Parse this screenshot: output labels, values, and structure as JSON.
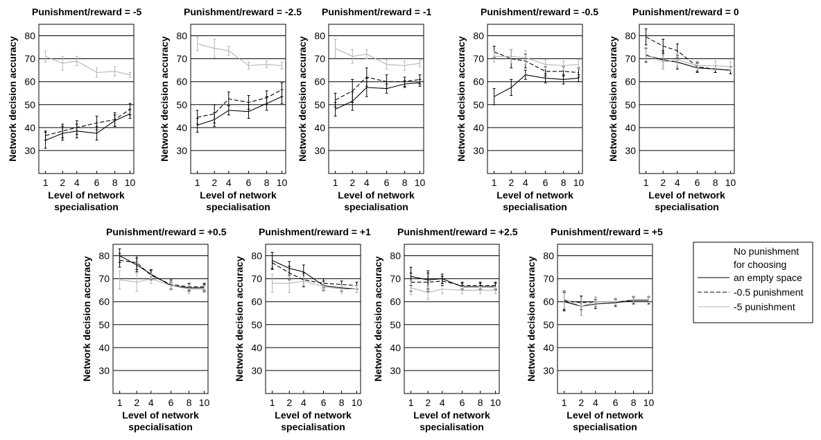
{
  "chart_data": {
    "type": "line",
    "x": [
      1,
      2,
      4,
      6,
      8,
      10
    ],
    "xlabel": "Level of network specialisation",
    "ylabel": "Network decision accuracy",
    "ylim": [
      20,
      85
    ],
    "yticks": [
      30,
      40,
      50,
      60,
      70,
      80
    ],
    "grid": "horizontal",
    "legend": {
      "position": "right",
      "entries": [
        {
          "lines": [
            "No punishment",
            "for choosing",
            "an empty space"
          ],
          "style": "solid",
          "color": "#000000"
        },
        {
          "lines": [
            "-0.5 punishment"
          ],
          "style": "dashed",
          "color": "#000000"
        },
        {
          "lines": [
            "-5 punishment"
          ],
          "style": "solid",
          "color": "#b4b4b4"
        }
      ]
    },
    "panels": [
      {
        "title": "Punishment/reward = -5",
        "series": [
          {
            "values": [
              34.5,
              37.5,
              38.5,
              37.5,
              43,
              46
            ],
            "err": [
              3.5,
              3,
              3,
              3,
              2.5,
              2
            ]
          },
          {
            "values": [
              36.5,
              38.5,
              40,
              42,
              43.5,
              48
            ],
            "err": [
              2,
              3,
              3,
              3,
              3,
              2.5
            ]
          },
          {
            "values": [
              71,
              68,
              69,
              64,
              64.5,
              63
            ],
            "err": [
              2.5,
              3,
              2,
              2,
              2,
              1
            ]
          }
        ]
      },
      {
        "title": "Punishment/reward = -2.5",
        "series": [
          {
            "values": [
              41,
              43.5,
              47.5,
              47,
              50.5,
              53.5
            ],
            "err": [
              3,
              3,
              2,
              3,
              3,
              3
            ]
          },
          {
            "values": [
              44.5,
              46,
              52.5,
              51,
              53,
              56.5
            ],
            "err": [
              3,
              4,
              3,
              3,
              3,
              3
            ]
          },
          {
            "values": [
              76.5,
              74.5,
              73.5,
              67,
              67.5,
              67
            ],
            "err": [
              3,
              4,
              2,
              1.5,
              1.5,
              1.5
            ]
          }
        ]
      },
      {
        "title": "Punishment/reward = -1",
        "series": [
          {
            "values": [
              48,
              51.5,
              57.5,
              57,
              59,
              59.5
            ],
            "err": [
              3,
              4,
              4,
              2,
              1.5,
              1.5
            ]
          },
          {
            "values": [
              52,
              56,
              62,
              60,
              60,
              61
            ],
            "err": [
              3,
              5,
              4,
              3,
              2,
              2
            ]
          },
          {
            "values": [
              74.5,
              71,
              72,
              67.5,
              67,
              68
            ],
            "err": [
              4,
              3,
              2,
              2,
              2,
              1.5
            ]
          }
        ]
      },
      {
        "title": "Punishment/reward = -0.5",
        "series": [
          {
            "values": [
              53.5,
              57.5,
              63,
              61.5,
              61,
              61.5
            ],
            "err": [
              3.5,
              3.5,
              2,
              2,
              2,
              1.5
            ]
          },
          {
            "values": [
              73,
              70,
              69,
              64.5,
              64.5,
              64
            ],
            "err": [
              2.5,
              4,
              3,
              2,
              2,
              2
            ]
          },
          {
            "values": [
              71,
              71,
              70.5,
              67.5,
              67,
              67.5
            ],
            "err": [
              2.5,
              3,
              3,
              2,
              2,
              2
            ]
          }
        ]
      },
      {
        "title": "Punishment/reward = 0",
        "series": [
          {
            "values": [
              71.5,
              69.5,
              68.5,
              66,
              65.5,
              65
            ],
            "err": [
              3,
              4,
              3,
              2,
              1.5,
              1.5
            ]
          },
          {
            "values": [
              79.5,
              75.5,
              73.5,
              66.5,
              65.5,
              65
            ],
            "err": [
              3.5,
              3,
              3,
              2,
              1.5,
              1.5
            ]
          },
          {
            "values": [
              72,
              68.5,
              69.5,
              67,
              67,
              66.5
            ],
            "err": [
              3,
              3,
              3,
              2,
              2,
              2
            ]
          }
        ]
      },
      {
        "title": "Punishment/reward = +0.5",
        "series": [
          {
            "values": [
              80,
              76,
              72,
              67,
              66,
              66
            ],
            "err": [
              3,
              3,
              2,
              1.5,
              1.5,
              1.5
            ]
          },
          {
            "values": [
              78,
              77,
              71.5,
              67.5,
              66.5,
              66.5
            ],
            "err": [
              3,
              3,
              2,
              2,
              1.5,
              1.5
            ]
          },
          {
            "values": [
              69.5,
              68.5,
              70,
              67,
              65.5,
              65.5
            ],
            "err": [
              4,
              4,
              2,
              2,
              2,
              1.5
            ]
          }
        ]
      },
      {
        "title": "Punishment/reward = +1",
        "series": [
          {
            "values": [
              78,
              74.5,
              73,
              67,
              66,
              65.5
            ],
            "err": [
              3.5,
              3,
              3,
              2,
              1.5,
              1.5
            ]
          },
          {
            "values": [
              77,
              72.5,
              69.5,
              68,
              67.5,
              67
            ],
            "err": [
              3,
              3,
              3,
              2,
              1.5,
              1.5
            ]
          },
          {
            "values": [
              68,
              68,
              69,
              66.5,
              65.5,
              65.5
            ],
            "err": [
              4,
              4,
              2,
              2,
              2,
              1.5
            ]
          }
        ]
      },
      {
        "title": "Punishment/reward = +2.5",
        "series": [
          {
            "values": [
              71,
              69.5,
              70,
              66.5,
              66.5,
              66.5
            ],
            "err": [
              4,
              4,
              2,
              1.5,
              1.5,
              1.5
            ]
          },
          {
            "values": [
              68.5,
              68.5,
              69,
              67,
              67,
              67
            ],
            "err": [
              4,
              4,
              2,
              1.5,
              1.5,
              1.5
            ]
          },
          {
            "values": [
              66,
              64,
              65.5,
              65,
              65,
              65
            ],
            "err": [
              3,
              3,
              2,
              1.5,
              1.5,
              1.5
            ]
          }
        ]
      },
      {
        "title": "Punishment/reward = +5",
        "series": [
          {
            "values": [
              60,
              58,
              59,
              59.5,
              60.5,
              60.5
            ],
            "err": [
              4,
              4,
              2,
              1.5,
              1.5,
              1.5
            ]
          },
          {
            "values": [
              60.5,
              59.5,
              60,
              60,
              60.5,
              60.5
            ],
            "err": [
              4,
              3,
              2,
              1.5,
              1.5,
              1.5
            ]
          },
          {
            "values": [
              61,
              58,
              60,
              60,
              61,
              61
            ],
            "err": [
              4,
              4,
              2,
              1.5,
              1.5,
              1.5
            ]
          }
        ]
      }
    ]
  }
}
